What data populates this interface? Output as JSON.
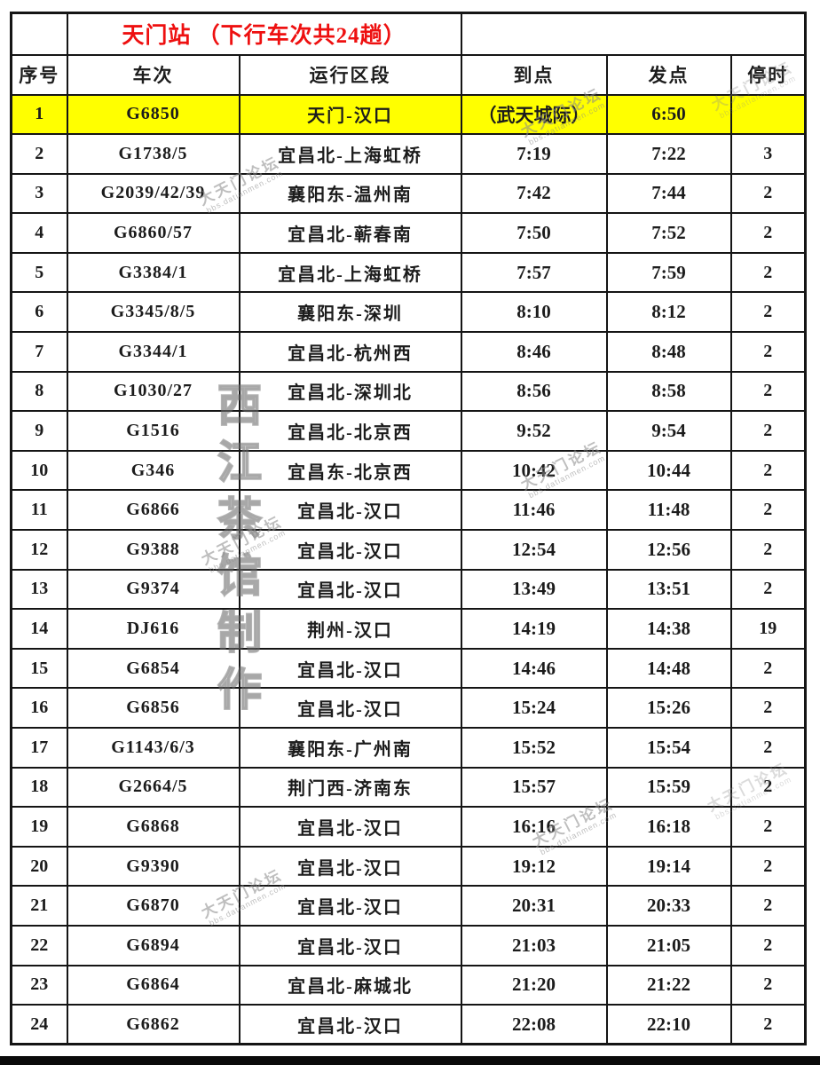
{
  "page": {
    "title": "天门站 （下行车次共24趟）"
  },
  "table": {
    "columns": [
      "序号",
      "车次",
      "运行区段",
      "到点",
      "发点",
      "停时"
    ],
    "rows": [
      {
        "no": "1",
        "train": "G6850",
        "route": "天门-汉口",
        "arrive": "（武天城际）",
        "depart": "6:50",
        "stop": "",
        "highlight": true
      },
      {
        "no": "2",
        "train": "G1738/5",
        "route": "宜昌北-上海虹桥",
        "arrive": "7:19",
        "depart": "7:22",
        "stop": "3",
        "highlight": false
      },
      {
        "no": "3",
        "train": "G2039/42/39",
        "route": "襄阳东-温州南",
        "arrive": "7:42",
        "depart": "7:44",
        "stop": "2",
        "highlight": false
      },
      {
        "no": "4",
        "train": "G6860/57",
        "route": "宜昌北-蕲春南",
        "arrive": "7:50",
        "depart": "7:52",
        "stop": "2",
        "highlight": false
      },
      {
        "no": "5",
        "train": "G3384/1",
        "route": "宜昌北-上海虹桥",
        "arrive": "7:57",
        "depart": "7:59",
        "stop": "2",
        "highlight": false
      },
      {
        "no": "6",
        "train": "G3345/8/5",
        "route": "襄阳东-深圳",
        "arrive": "8:10",
        "depart": "8:12",
        "stop": "2",
        "highlight": false
      },
      {
        "no": "7",
        "train": "G3344/1",
        "route": "宜昌北-杭州西",
        "arrive": "8:46",
        "depart": "8:48",
        "stop": "2",
        "highlight": false
      },
      {
        "no": "8",
        "train": "G1030/27",
        "route": "宜昌北-深圳北",
        "arrive": "8:56",
        "depart": "8:58",
        "stop": "2",
        "highlight": false
      },
      {
        "no": "9",
        "train": "G1516",
        "route": "宜昌北-北京西",
        "arrive": "9:52",
        "depart": "9:54",
        "stop": "2",
        "highlight": false
      },
      {
        "no": "10",
        "train": "G346",
        "route": "宜昌东-北京西",
        "arrive": "10:42",
        "depart": "10:44",
        "stop": "2",
        "highlight": false
      },
      {
        "no": "11",
        "train": "G6866",
        "route": "宜昌北-汉口",
        "arrive": "11:46",
        "depart": "11:48",
        "stop": "2",
        "highlight": false
      },
      {
        "no": "12",
        "train": "G9388",
        "route": "宜昌北-汉口",
        "arrive": "12:54",
        "depart": "12:56",
        "stop": "2",
        "highlight": false
      },
      {
        "no": "13",
        "train": "G9374",
        "route": "宜昌北-汉口",
        "arrive": "13:49",
        "depart": "13:51",
        "stop": "2",
        "highlight": false
      },
      {
        "no": "14",
        "train": "DJ616",
        "route": "荆州-汉口",
        "arrive": "14:19",
        "depart": "14:38",
        "stop": "19",
        "highlight": false
      },
      {
        "no": "15",
        "train": "G6854",
        "route": "宜昌北-汉口",
        "arrive": "14:46",
        "depart": "14:48",
        "stop": "2",
        "highlight": false
      },
      {
        "no": "16",
        "train": "G6856",
        "route": "宜昌北-汉口",
        "arrive": "15:24",
        "depart": "15:26",
        "stop": "2",
        "highlight": false
      },
      {
        "no": "17",
        "train": "G1143/6/3",
        "route": "襄阳东-广州南",
        "arrive": "15:52",
        "depart": "15:54",
        "stop": "2",
        "highlight": false
      },
      {
        "no": "18",
        "train": "G2664/5",
        "route": "荆门西-济南东",
        "arrive": "15:57",
        "depart": "15:59",
        "stop": "2",
        "highlight": false
      },
      {
        "no": "19",
        "train": "G6868",
        "route": "宜昌北-汉口",
        "arrive": "16:16",
        "depart": "16:18",
        "stop": "2",
        "highlight": false
      },
      {
        "no": "20",
        "train": "G9390",
        "route": "宜昌北-汉口",
        "arrive": "19:12",
        "depart": "19:14",
        "stop": "2",
        "highlight": false
      },
      {
        "no": "21",
        "train": "G6870",
        "route": "宜昌北-汉口",
        "arrive": "20:31",
        "depart": "20:33",
        "stop": "2",
        "highlight": false
      },
      {
        "no": "22",
        "train": "G6894",
        "route": "宜昌北-汉口",
        "arrive": "21:03",
        "depart": "21:05",
        "stop": "2",
        "highlight": false
      },
      {
        "no": "23",
        "train": "G6864",
        "route": "宜昌北-麻城北",
        "arrive": "21:20",
        "depart": "21:22",
        "stop": "2",
        "highlight": false
      },
      {
        "no": "24",
        "train": "G6862",
        "route": "宜昌北-汉口",
        "arrive": "22:08",
        "depart": "22:10",
        "stop": "2",
        "highlight": false
      }
    ]
  },
  "watermarks": {
    "forum_name": "大天门论坛",
    "forum_url": "bbs.datianmen.com",
    "maker_vertical": "西江茶馆制作"
  },
  "colors": {
    "title_red": "#ee1010",
    "highlight_yellow": "#ffff00",
    "border_black": "#151515",
    "watermark_gray": "#8a8a8a"
  }
}
